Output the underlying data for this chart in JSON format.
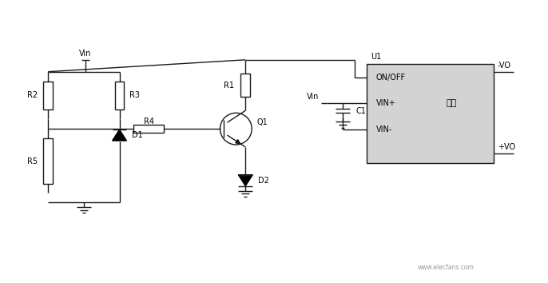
{
  "background_color": "#ffffff",
  "line_color": "#1a1a1a",
  "box_facecolor": "#d3d3d3",
  "fig_width": 6.86,
  "fig_height": 3.54,
  "dpi": 100,
  "watermark_text": "www.elecfans.com",
  "labels": {
    "Vin_top": "Vin",
    "R2": "R2",
    "R3": "R3",
    "R4": "R4",
    "R5": "R5",
    "D1": "D1",
    "D2": "D2",
    "R1": "R1",
    "C1": "C1",
    "Q1": "Q1",
    "Vin_mid": "Vin",
    "ON_OFF": "ON/OFF",
    "VIN_plus": "VIN+",
    "VIN_minus": "VIN-",
    "dianYuan": "电源",
    "neg_VO": "-VO",
    "pos_VO": "+VO",
    "U1": "U1"
  }
}
